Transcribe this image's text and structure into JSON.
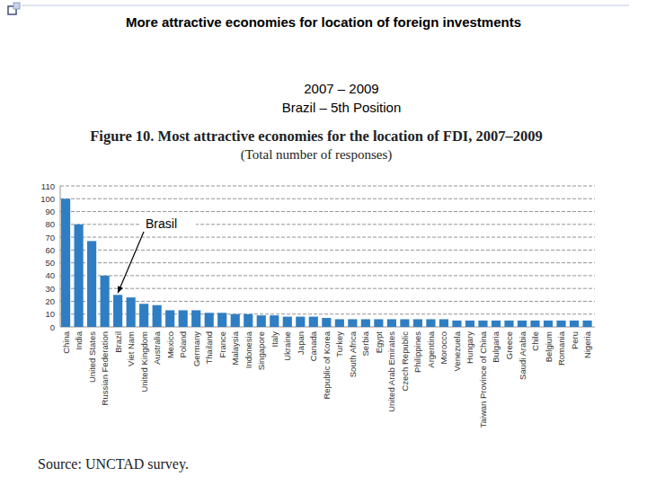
{
  "header": {
    "title": "More attractive economies for location of foreign investments",
    "lines": [
      "2007 – 2009",
      "Brazil – 5th Position"
    ]
  },
  "chart_data": {
    "type": "bar",
    "title": "Figure 10. Most attractive economies for the location of FDI, 2007–2009",
    "subtitle": "(Total number of responses)",
    "source": "Source: UNCTAD survey.",
    "annotations": [
      {
        "text": "Brasil",
        "target": "Brazil"
      }
    ],
    "categories": [
      "China",
      "India",
      "United States",
      "Russian Federation",
      "Brazil",
      "Viet Nam",
      "United Kingdom",
      "Australia",
      "Mexico",
      "Poland",
      "Germany",
      "Thailand",
      "France",
      "Malaysia",
      "Indonesia",
      "Singapore",
      "Italy",
      "Ukraine",
      "Japan",
      "Canada",
      "Republic of Korea",
      "Turkey",
      "South Africa",
      "Serbia",
      "Egypt",
      "United Arab Emirates",
      "Czech Republic",
      "Philippines",
      "Argentina",
      "Morocco",
      "Venezuela",
      "Hungary",
      "Taiwan Province of China",
      "Bulgaria",
      "Greece",
      "Saudi Arabia",
      "Chile",
      "Belgium",
      "Romania",
      "Peru",
      "Nigeria"
    ],
    "values": [
      100,
      80,
      67,
      40,
      25,
      23,
      18,
      17,
      13,
      13,
      13,
      11,
      11,
      10,
      10,
      9,
      9,
      8,
      8,
      8,
      7,
      6,
      6,
      6,
      6,
      6,
      6,
      6,
      6,
      6,
      5,
      5,
      5,
      5,
      5,
      5,
      5,
      5,
      5,
      5,
      5
    ],
    "color": "#2f7ec4",
    "ylim": [
      0,
      110
    ],
    "yticks": [
      0,
      10,
      20,
      30,
      40,
      50,
      60,
      70,
      80,
      90,
      100,
      110
    ],
    "grid": true
  }
}
